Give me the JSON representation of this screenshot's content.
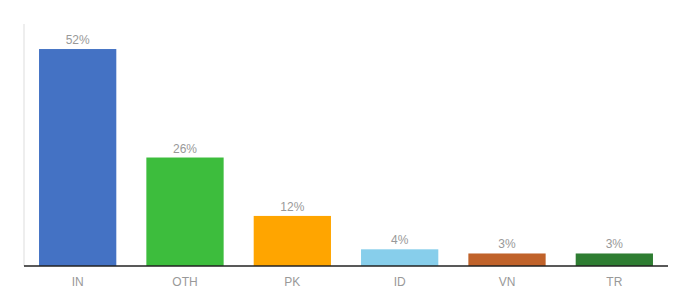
{
  "chart_data": {
    "type": "bar",
    "categories": [
      "IN",
      "OTH",
      "PK",
      "ID",
      "VN",
      "TR"
    ],
    "values": [
      52,
      26,
      12,
      4,
      3,
      3
    ],
    "value_labels": [
      "52%",
      "26%",
      "12%",
      "4%",
      "3%",
      "3%"
    ],
    "colors": [
      "#4472C4",
      "#3DBD3D",
      "#FFA500",
      "#87CEEB",
      "#C0622A",
      "#2E7D32"
    ],
    "ylim": [
      0,
      58
    ],
    "data_labels": true,
    "tick_labels": "x"
  }
}
